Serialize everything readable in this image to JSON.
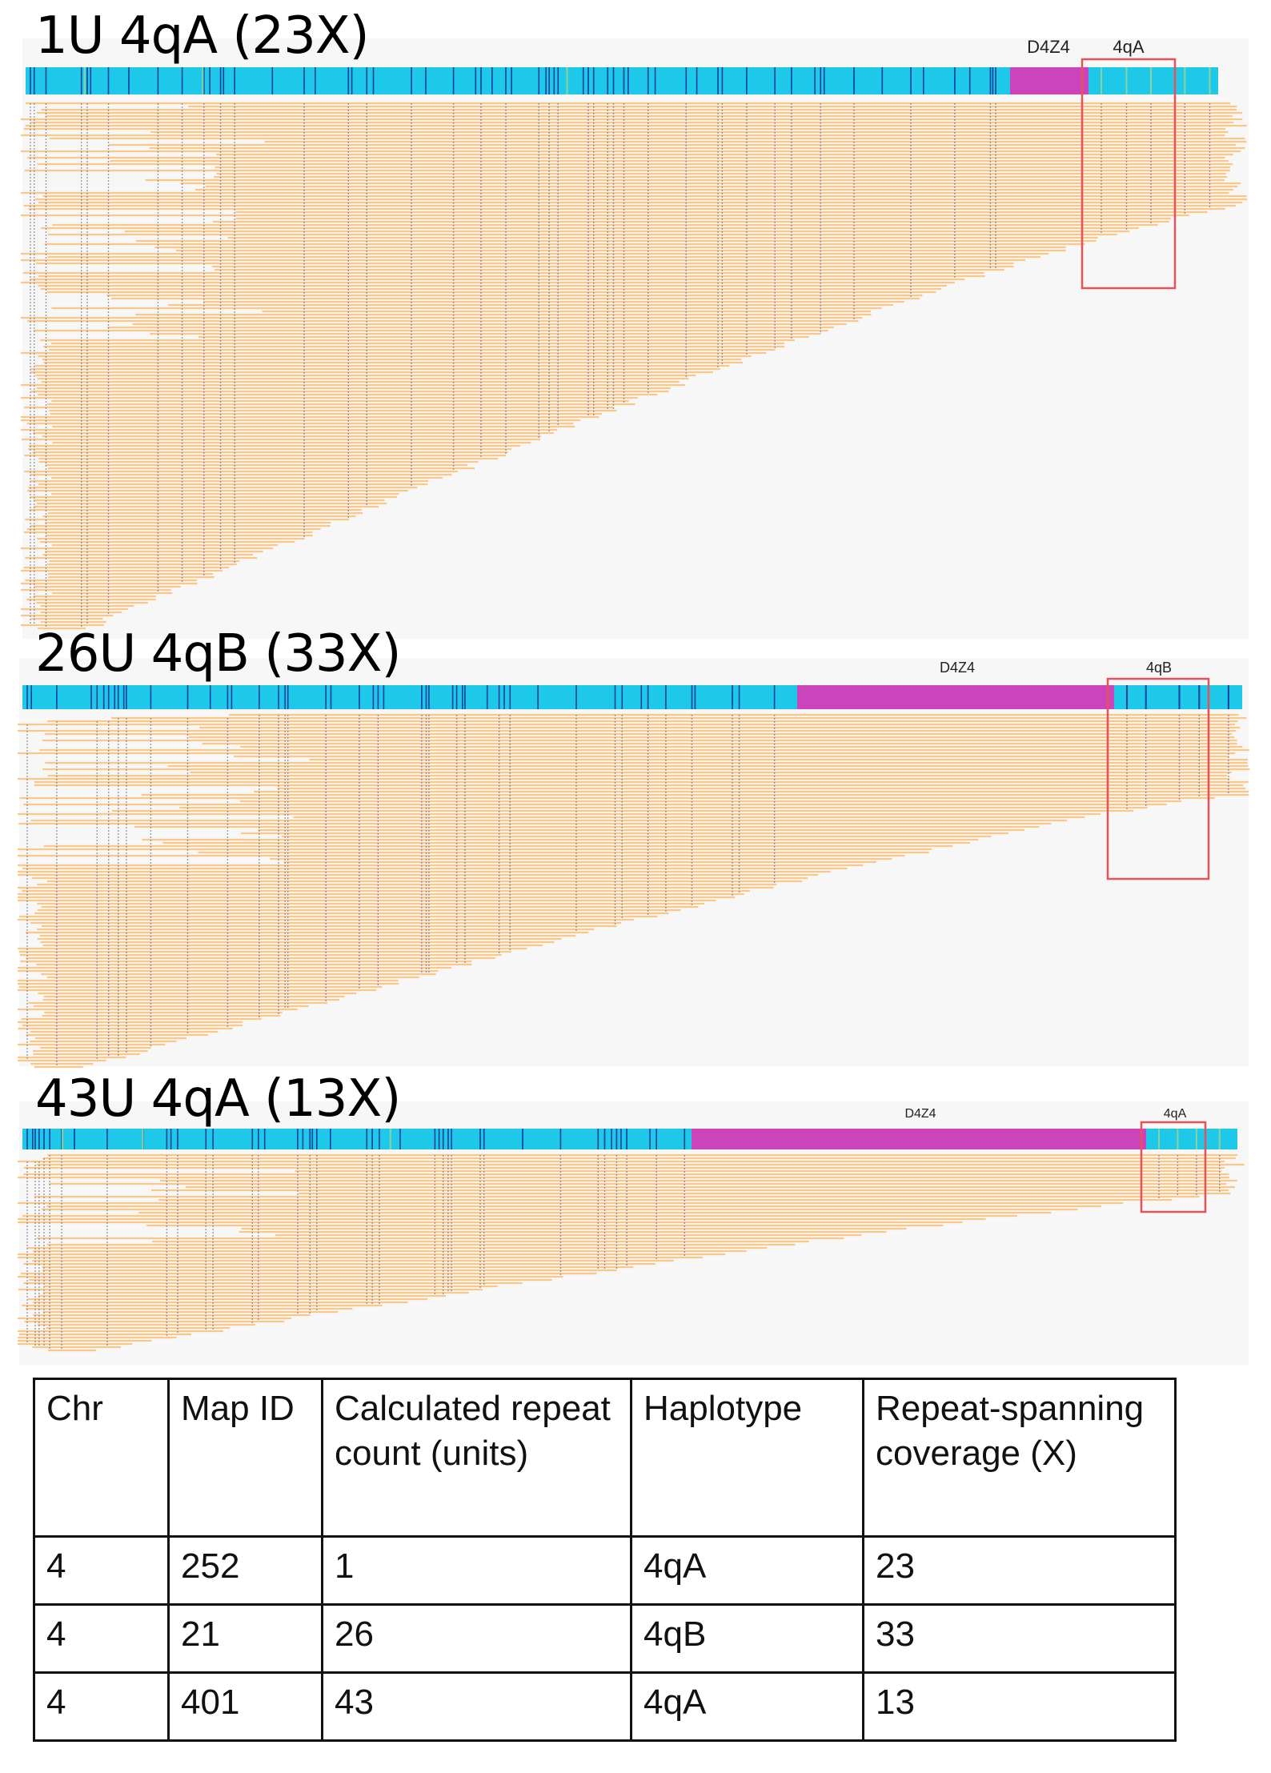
{
  "panels": [
    {
      "title": "1U 4qA (23X)",
      "repeat_units": 1,
      "haplotype": "4qA",
      "coverage_x": 23,
      "segment_labels": {
        "d4z4": "D4Z4",
        "haplotype": "4qA"
      },
      "has_green_marks": true
    },
    {
      "title": "26U 4qB (33X)",
      "repeat_units": 26,
      "haplotype": "4qB",
      "coverage_x": 33,
      "segment_labels": {
        "d4z4": "D4Z4",
        "haplotype": "4qB"
      },
      "has_green_marks": false
    },
    {
      "title": "43U 4qA (13X)",
      "repeat_units": 43,
      "haplotype": "4qA",
      "coverage_x": 13,
      "segment_labels": {
        "d4z4": "D4Z4",
        "haplotype": "4qA"
      },
      "has_green_marks": true
    }
  ],
  "colors": {
    "reference": "#1ec8e8",
    "label_site": "#0d3f9e",
    "d4z4": "#cc44bb",
    "molecule": "#f8c889",
    "molecule_site": "#7a7a8c",
    "highlight_box": "#e8505a",
    "green_mark": "#8fd19e"
  },
  "table": {
    "headers": [
      "Chr",
      "Map ID",
      "Calculated repeat count (units)",
      "Haplotype",
      "Repeat-spanning coverage (X)"
    ],
    "rows": [
      [
        "4",
        "252",
        "1",
        "4qA",
        "23"
      ],
      [
        "4",
        "21",
        "26",
        "4qB",
        "33"
      ],
      [
        "4",
        "401",
        "43",
        "4qA",
        "13"
      ]
    ]
  }
}
